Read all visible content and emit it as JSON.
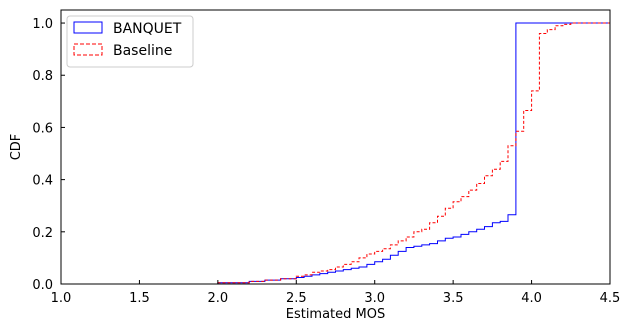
{
  "chart_data": {
    "type": "line",
    "step": true,
    "xlabel": "Estimated MOS",
    "ylabel": "CDF",
    "xlim": [
      1.0,
      4.5
    ],
    "ylim": [
      0.0,
      1.05
    ],
    "xticks": [
      "1.0",
      "1.5",
      "2.0",
      "2.5",
      "3.0",
      "3.5",
      "4.0",
      "4.5"
    ],
    "yticks": [
      "0.0",
      "0.2",
      "0.4",
      "0.6",
      "0.8",
      "1.0"
    ],
    "grid": false,
    "legend_position": "top-left",
    "series": [
      {
        "name": "BANQUET",
        "color": "#0000ff",
        "dash": "solid",
        "x": [
          1.56,
          2.0,
          2.2,
          2.3,
          2.4,
          2.5,
          2.55,
          2.6,
          2.65,
          2.7,
          2.75,
          2.8,
          2.85,
          2.9,
          2.95,
          3.0,
          3.05,
          3.1,
          3.15,
          3.2,
          3.25,
          3.3,
          3.35,
          3.4,
          3.45,
          3.5,
          3.55,
          3.6,
          3.65,
          3.7,
          3.75,
          3.8,
          3.85,
          3.9,
          4.5
        ],
        "y": [
          0.0,
          0.005,
          0.01,
          0.015,
          0.02,
          0.025,
          0.03,
          0.035,
          0.04,
          0.045,
          0.05,
          0.055,
          0.06,
          0.065,
          0.075,
          0.085,
          0.095,
          0.11,
          0.125,
          0.14,
          0.145,
          0.15,
          0.155,
          0.165,
          0.175,
          0.18,
          0.19,
          0.2,
          0.21,
          0.22,
          0.235,
          0.24,
          0.265,
          1.0,
          1.0
        ]
      },
      {
        "name": "Baseline",
        "color": "#ff0000",
        "dash": "dashed",
        "x": [
          1.56,
          2.0,
          2.2,
          2.3,
          2.4,
          2.5,
          2.55,
          2.6,
          2.65,
          2.7,
          2.75,
          2.8,
          2.85,
          2.9,
          2.95,
          3.0,
          3.05,
          3.1,
          3.15,
          3.2,
          3.25,
          3.3,
          3.35,
          3.4,
          3.45,
          3.5,
          3.55,
          3.6,
          3.65,
          3.7,
          3.75,
          3.8,
          3.85,
          3.9,
          3.95,
          4.0,
          4.05,
          4.1,
          4.15,
          4.2,
          4.25,
          4.5
        ],
        "y": [
          0.0,
          0.005,
          0.01,
          0.015,
          0.02,
          0.03,
          0.035,
          0.045,
          0.05,
          0.055,
          0.065,
          0.075,
          0.085,
          0.1,
          0.115,
          0.125,
          0.135,
          0.15,
          0.165,
          0.18,
          0.2,
          0.21,
          0.235,
          0.26,
          0.29,
          0.315,
          0.335,
          0.36,
          0.385,
          0.415,
          0.44,
          0.47,
          0.53,
          0.585,
          0.665,
          0.74,
          0.96,
          0.975,
          0.99,
          0.995,
          1.0,
          1.0
        ]
      }
    ]
  }
}
